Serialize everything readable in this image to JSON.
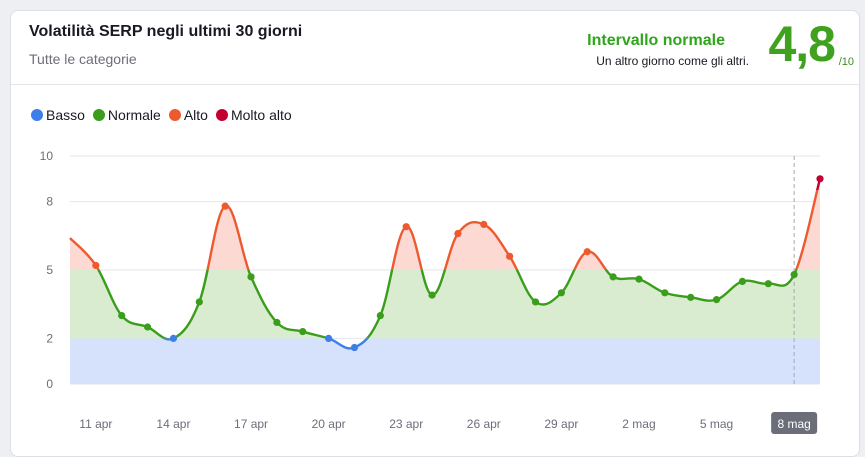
{
  "header": {
    "title": "Volatilità SERP negli ultimi 30 giorni",
    "subtitle": "Tutte le categorie",
    "range_label": "Intervallo normale",
    "range_desc": "Un altro giorno come gli altri.",
    "score": "4,8",
    "score_max": "/10"
  },
  "legend": [
    {
      "label": "Basso",
      "color": "#3e7ee8"
    },
    {
      "label": "Normale",
      "color": "#3a9d1c"
    },
    {
      "label": "Alto",
      "color": "#ee5a2f"
    },
    {
      "label": "Molto alto",
      "color": "#c2002f"
    }
  ],
  "colors": {
    "band_low": "#d6e2fb",
    "band_normal": "#d9eccf",
    "band_high": "#fcd9d3",
    "grid": "#e5e6ea",
    "crosshair": "#a6a9b1",
    "active_tick_bg": "#6b6e79"
  },
  "chart_data": {
    "type": "line",
    "x": [
      "10 apr",
      "11 apr",
      "12 apr",
      "13 apr",
      "14 apr",
      "15 apr",
      "16 apr",
      "17 apr",
      "18 apr",
      "19 apr",
      "20 apr",
      "21 apr",
      "22 apr",
      "23 apr",
      "24 apr",
      "25 apr",
      "26 apr",
      "27 apr",
      "28 apr",
      "29 apr",
      "30 apr",
      "1 mag",
      "2 mag",
      "3 mag",
      "4 mag",
      "5 mag",
      "6 mag",
      "7 mag",
      "8 mag",
      "9 mag"
    ],
    "values": [
      6.4,
      5.2,
      3.0,
      2.5,
      2.0,
      3.6,
      7.8,
      4.7,
      2.7,
      2.3,
      2.0,
      1.6,
      3.0,
      6.9,
      3.9,
      6.6,
      7.0,
      5.6,
      3.6,
      4.0,
      5.8,
      4.7,
      4.6,
      4.0,
      3.8,
      3.7,
      4.5,
      4.4,
      4.8,
      9.0
    ],
    "xticks": [
      "11 apr",
      "14 apr",
      "17 apr",
      "20 apr",
      "23 apr",
      "26 apr",
      "29 apr",
      "2 mag",
      "5 mag",
      "8 mag"
    ],
    "xtick_index": [
      1,
      4,
      7,
      10,
      13,
      16,
      19,
      22,
      25,
      28
    ],
    "highlight_index": 28,
    "yticks": [
      0,
      2,
      5,
      8,
      10
    ],
    "ylim": [
      0,
      10
    ],
    "bands": [
      {
        "name": "Basso",
        "from": 0,
        "to": 2
      },
      {
        "name": "Normale",
        "from": 2,
        "to": 5
      },
      {
        "name": "Alto",
        "from": 5,
        "to": 10
      }
    ],
    "thresholds": {
      "low": 2,
      "high": 5,
      "very_high": 8.5
    },
    "legend_placement": "top-left",
    "grid": true
  }
}
